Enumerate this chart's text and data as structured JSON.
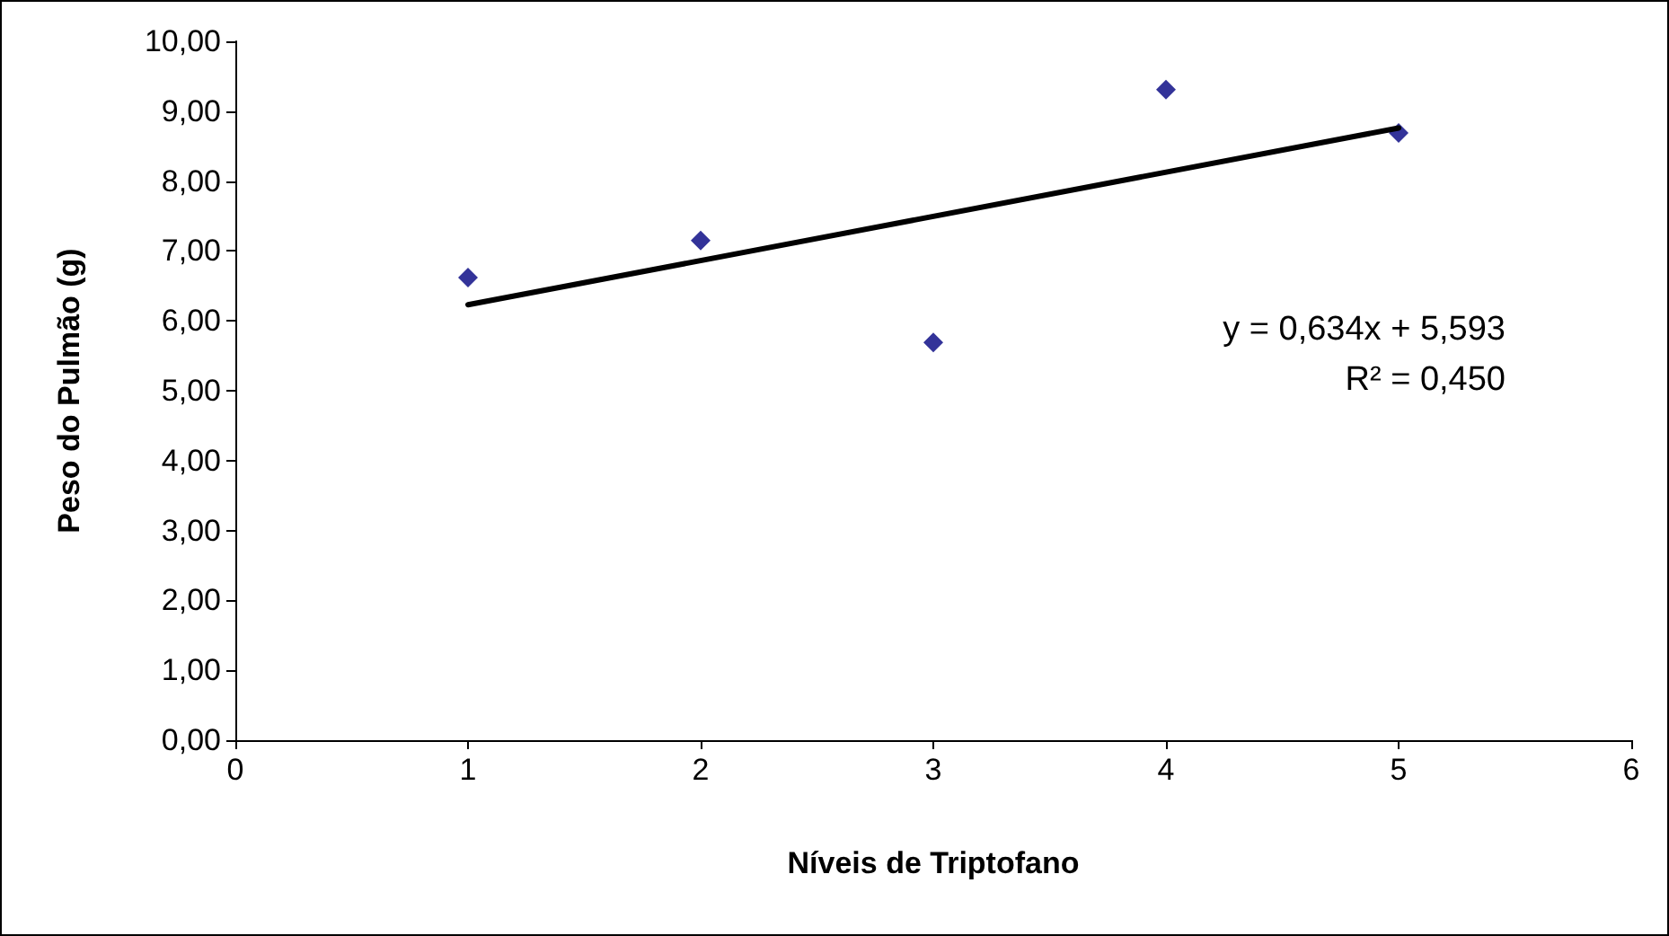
{
  "chart_data": {
    "type": "scatter",
    "xlabel": "Níveis de Triptofano",
    "ylabel": "Peso do Pulmão (g)",
    "series": [
      {
        "color": "#000080",
        "x": [
          1,
          2,
          3,
          4,
          5
        ],
        "values": [
          6.62,
          7.15,
          5.69,
          9.31,
          8.69
        ],
        "marker": "diamond"
      },
      {
        "type": "line",
        "color": "#000000",
        "x": [
          1,
          5
        ],
        "values": [
          6.23,
          8.76
        ],
        "marker": "none"
      }
    ],
    "xlim": [
      0,
      6
    ],
    "xticks": [
      0,
      1,
      2,
      3,
      4,
      5,
      6
    ],
    "ylim": [
      0,
      10
    ],
    "yticks": [
      {
        "value": 0,
        "label": "0,00"
      },
      {
        "value": 1,
        "label": "1,00"
      },
      {
        "value": 2,
        "label": "2,00"
      },
      {
        "value": 3,
        "label": "3,00"
      },
      {
        "value": 4,
        "label": "4,00"
      },
      {
        "value": 5,
        "label": "5,00"
      },
      {
        "value": 6,
        "label": "6,00"
      },
      {
        "value": 7,
        "label": "7,00"
      },
      {
        "value": 8,
        "label": "8,00"
      },
      {
        "value": 9,
        "label": "9,00"
      },
      {
        "value": 10,
        "label": "10,00"
      }
    ],
    "annotations": [
      "y = 0,634x + 5,593",
      "R² = 0,450"
    ],
    "grid": false
  }
}
